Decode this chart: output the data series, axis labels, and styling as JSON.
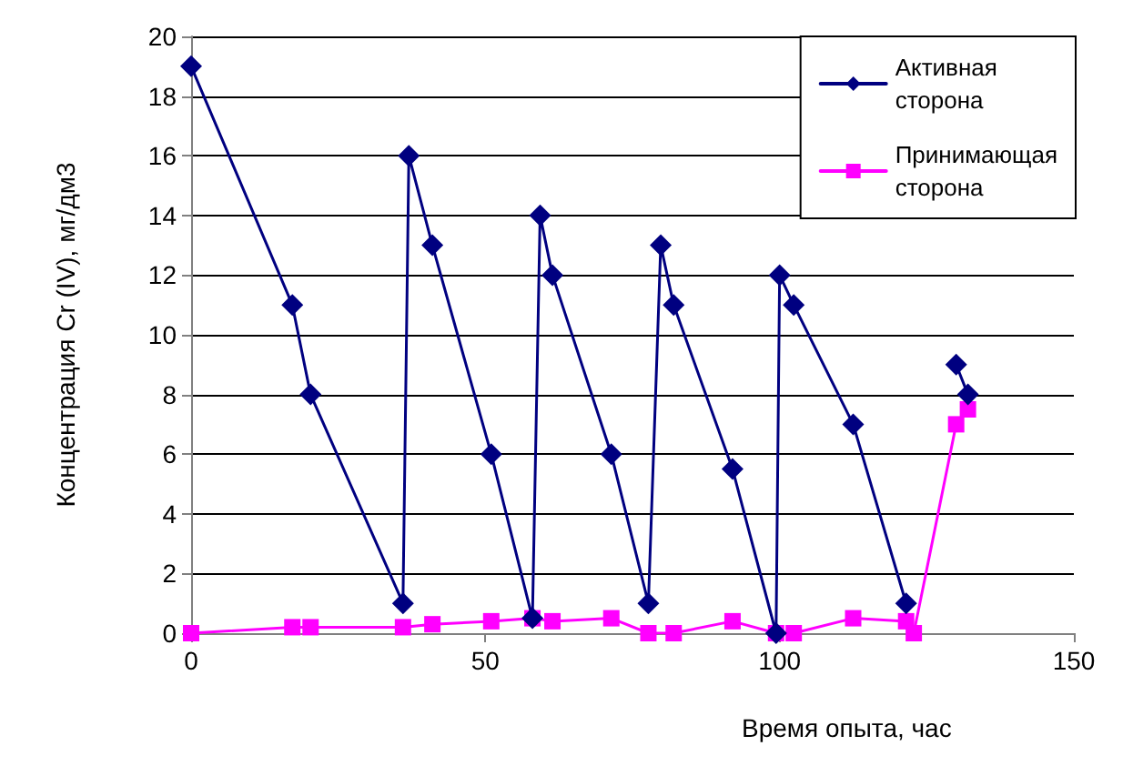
{
  "chart_data": {
    "type": "line",
    "xlabel": "Время опыта, час",
    "ylabel": "Концентрация Cr (IV), мг/дм3",
    "xlim": [
      0,
      150
    ],
    "xticks": [
      0,
      50,
      100,
      150
    ],
    "ylim": [
      0,
      20
    ],
    "yticks": [
      0,
      2,
      4,
      6,
      8,
      10,
      12,
      14,
      16,
      18,
      20
    ],
    "grid": "y",
    "legend": "top right",
    "series": [
      {
        "name": "Активная сторона",
        "color": "#000080",
        "marker": "diamond",
        "x": [
          0,
          17.2,
          20.3,
          36,
          37,
          41,
          51,
          58,
          59.3,
          61.4,
          71.4,
          77.7,
          79.8,
          82,
          92,
          99.4,
          100,
          102.4,
          112.5,
          121.5,
          123,
          130,
          132
        ],
        "values": [
          19,
          11,
          8,
          1,
          16,
          13,
          6,
          0.5,
          14,
          12,
          6,
          1,
          13,
          11,
          5.5,
          0,
          12,
          11,
          7,
          1,
          null,
          9,
          8
        ]
      },
      {
        "name": "Принимающая сторона",
        "color": "#ff00ff",
        "marker": "square",
        "x": [
          0,
          17.2,
          20.3,
          36,
          41,
          51,
          58,
          61.4,
          71.4,
          77.7,
          82,
          92,
          99.4,
          102.4,
          112.5,
          121.5,
          122.8,
          130,
          132
        ],
        "values": [
          0,
          0.2,
          0.2,
          0.2,
          0.3,
          0.4,
          0.5,
          0.4,
          0.5,
          0,
          0,
          0.4,
          0,
          0,
          0.5,
          0.4,
          0,
          7,
          7.5
        ]
      }
    ]
  }
}
